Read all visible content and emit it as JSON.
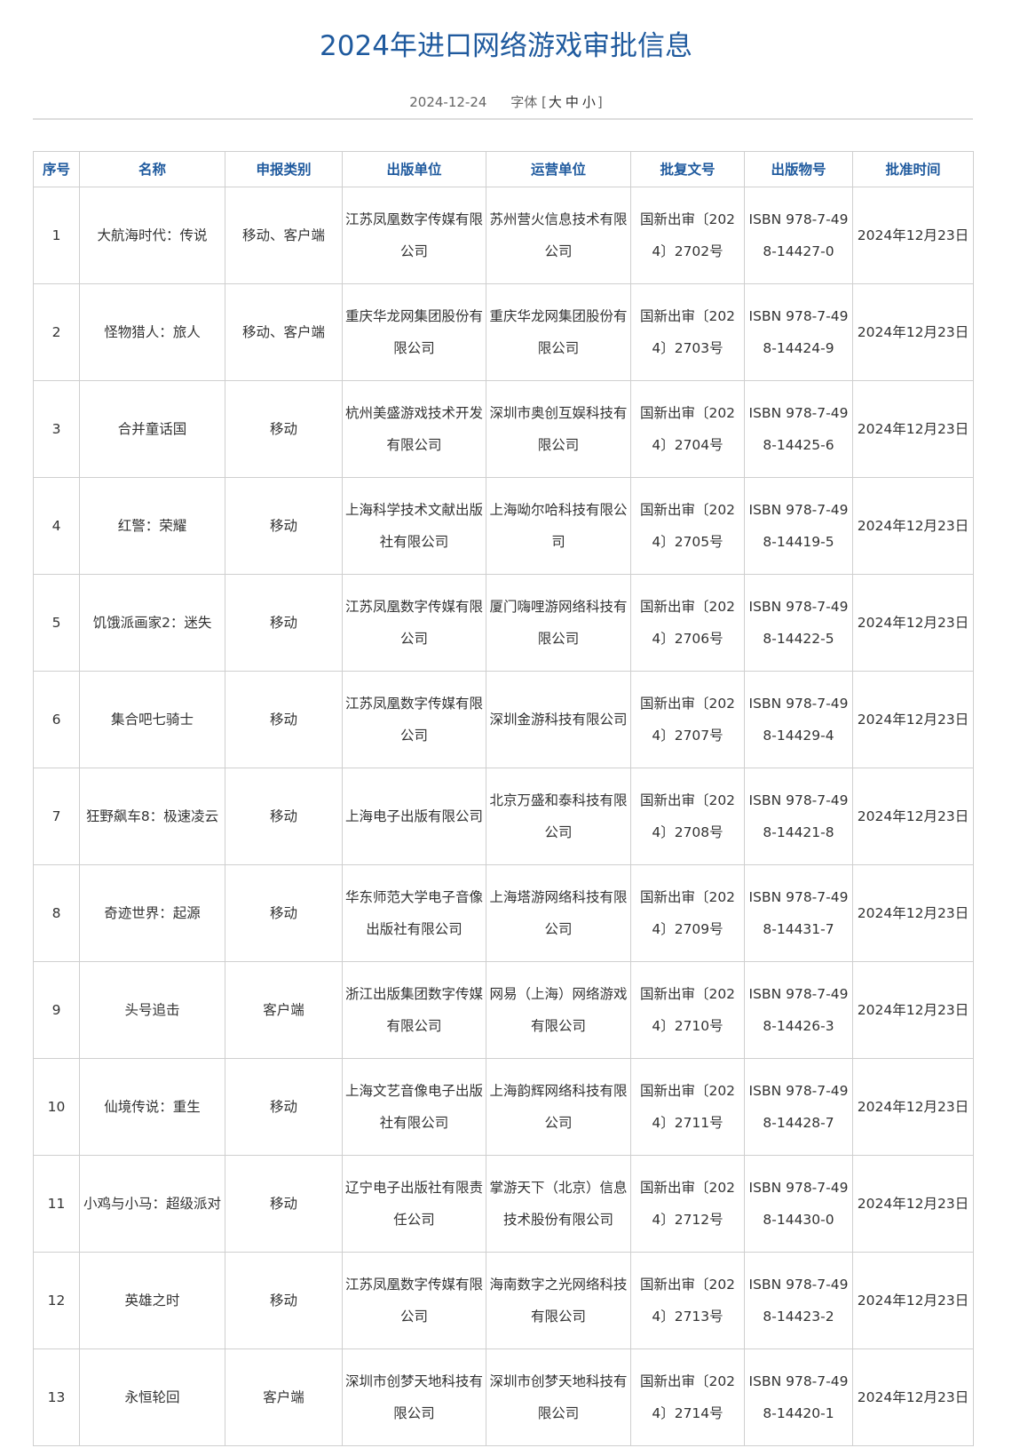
{
  "title": "2024年进口网络游戏审批信息",
  "date": "2024-12-24",
  "font_size": {
    "label": "字体",
    "open": "[",
    "large": "大",
    "medium": "中",
    "small": "小",
    "close": "]"
  },
  "columns": [
    "序号",
    "名称",
    "申报类别",
    "出版单位",
    "运营单位",
    "批复文号",
    "出版物号",
    "批准时间"
  ],
  "rows": [
    [
      "1",
      "大航海时代：传说",
      "移动、客户端",
      "江苏凤凰数字传媒有限公司",
      "苏州营火信息技术有限公司",
      "国新出审〔2024〕2702号",
      "ISBN 978-7-498-14427-0",
      "2024年12月23日"
    ],
    [
      "2",
      "怪物猎人：旅人",
      "移动、客户端",
      "重庆华龙网集团股份有限公司",
      "重庆华龙网集团股份有限公司",
      "国新出审〔2024〕2703号",
      "ISBN 978-7-498-14424-9",
      "2024年12月23日"
    ],
    [
      "3",
      "合并童话国",
      "移动",
      "杭州美盛游戏技术开发有限公司",
      "深圳市奥创互娱科技有限公司",
      "国新出审〔2024〕2704号",
      "ISBN 978-7-498-14425-6",
      "2024年12月23日"
    ],
    [
      "4",
      "红警：荣耀",
      "移动",
      "上海科学技术文献出版社有限公司",
      "上海呦尔哈科技有限公司",
      "国新出审〔2024〕2705号",
      "ISBN 978-7-498-14419-5",
      "2024年12月23日"
    ],
    [
      "5",
      "饥饿派画家2：迷失",
      "移动",
      "江苏凤凰数字传媒有限公司",
      "厦门嗨哩游网络科技有限公司",
      "国新出审〔2024〕2706号",
      "ISBN 978-7-498-14422-5",
      "2024年12月23日"
    ],
    [
      "6",
      "集合吧七骑士",
      "移动",
      "江苏凤凰数字传媒有限公司",
      "深圳金游科技有限公司",
      "国新出审〔2024〕2707号",
      "ISBN 978-7-498-14429-4",
      "2024年12月23日"
    ],
    [
      "7",
      "狂野飙车8：极速凌云",
      "移动",
      "上海电子出版有限公司",
      "北京万盛和泰科技有限公司",
      "国新出审〔2024〕2708号",
      "ISBN 978-7-498-14421-8",
      "2024年12月23日"
    ],
    [
      "8",
      "奇迹世界：起源",
      "移动",
      "华东师范大学电子音像出版社有限公司",
      "上海塔游网络科技有限公司",
      "国新出审〔2024〕2709号",
      "ISBN 978-7-498-14431-7",
      "2024年12月23日"
    ],
    [
      "9",
      "头号追击",
      "客户端",
      "浙江出版集团数字传媒有限公司",
      "网易（上海）网络游戏有限公司",
      "国新出审〔2024〕2710号",
      "ISBN 978-7-498-14426-3",
      "2024年12月23日"
    ],
    [
      "10",
      "仙境传说：重生",
      "移动",
      "上海文艺音像电子出版社有限公司",
      "上海韵辉网络科技有限公司",
      "国新出审〔2024〕2711号",
      "ISBN 978-7-498-14428-7",
      "2024年12月23日"
    ],
    [
      "11",
      "小鸡与小马：超级派对",
      "移动",
      "辽宁电子出版社有限责任公司",
      "掌游天下（北京）信息技术股份有限公司",
      "国新出审〔2024〕2712号",
      "ISBN 978-7-498-14430-0",
      "2024年12月23日"
    ],
    [
      "12",
      "英雄之时",
      "移动",
      "江苏凤凰数字传媒有限公司",
      "海南数字之光网络科技有限公司",
      "国新出审〔2024〕2713号",
      "ISBN 978-7-498-14423-2",
      "2024年12月23日"
    ],
    [
      "13",
      "永恒轮回",
      "客户端",
      "深圳市创梦天地科技有限公司",
      "深圳市创梦天地科技有限公司",
      "国新出审〔2024〕2714号",
      "ISBN 978-7-498-14420-1",
      "2024年12月23日"
    ]
  ],
  "colors": {
    "title": "#1f5a9e",
    "border": "#cfcfcf",
    "text": "#333333"
  }
}
